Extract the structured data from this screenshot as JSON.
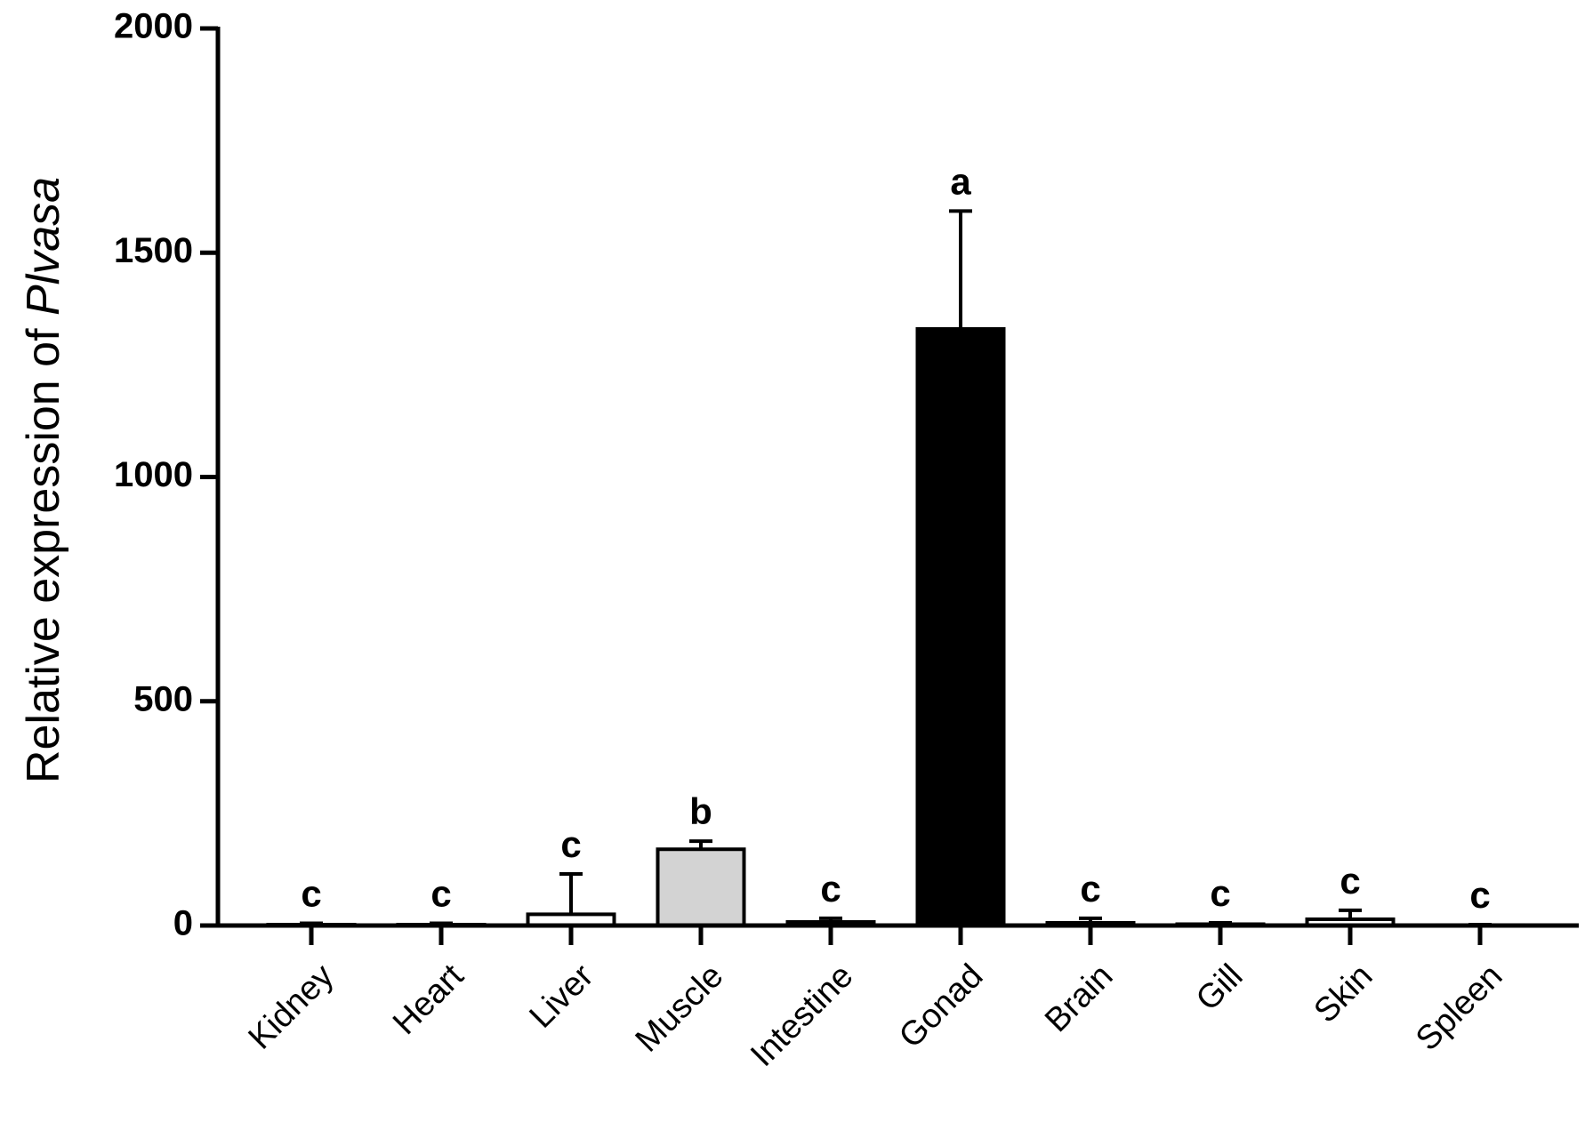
{
  "chart_data": {
    "type": "bar",
    "ylabel": "Relative expression of ",
    "ylabel_italic": "Plvasa",
    "categories": [
      "Kidney",
      "Heart",
      "Liver",
      "Muscle",
      "Intestine",
      "Gonad",
      "Brain",
      "Gill",
      "Skin",
      "Spleen"
    ],
    "values": [
      2,
      2,
      25,
      170,
      8,
      1330,
      6,
      3,
      14,
      1
    ],
    "errors": [
      3,
      3,
      90,
      18,
      8,
      263,
      10,
      3,
      20,
      1
    ],
    "significance_labels": [
      "c",
      "c",
      "c",
      "b",
      "c",
      "a",
      "c",
      "c",
      "c",
      "c"
    ],
    "colors": [
      "#ffffff",
      "#ffffff",
      "#ffffff",
      "#d3d3d3",
      "#ffffff",
      "#000000",
      "#ffffff",
      "#ffffff",
      "#ffffff",
      "#ffffff"
    ],
    "ylim": [
      0,
      2000
    ],
    "yticks": [
      0,
      500,
      1000,
      1500,
      2000
    ],
    "grid": false
  }
}
